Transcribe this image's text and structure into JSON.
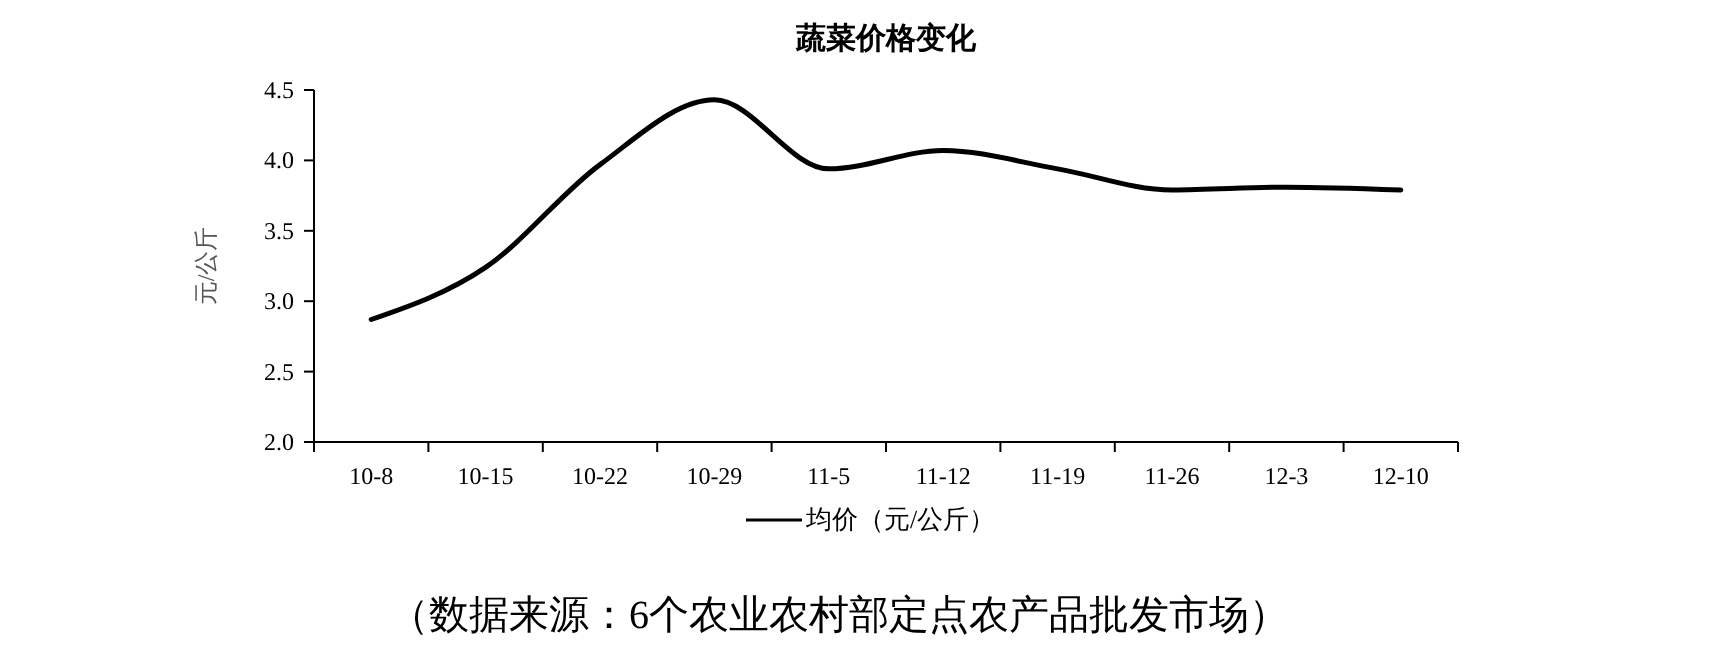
{
  "chart_data": {
    "type": "line",
    "title": "蔬菜价格变化",
    "ylabel": "元/公斤",
    "categories": [
      "10-8",
      "10-15",
      "10-22",
      "10-29",
      "11-5",
      "11-12",
      "11-19",
      "11-26",
      "12-3",
      "12-10"
    ],
    "series": [
      {
        "name": "均价（元/公斤）",
        "color": "#000000",
        "values": [
          2.87,
          3.24,
          3.97,
          4.43,
          3.94,
          4.07,
          3.94,
          3.79,
          3.81,
          3.79
        ]
      }
    ],
    "ylim": [
      2.0,
      4.5
    ],
    "yticks": [
      {
        "value": 2,
        "label": "2.0"
      },
      {
        "value": 2.5,
        "label": "2.5"
      },
      {
        "value": 3,
        "label": "3.0"
      },
      {
        "value": 3.5,
        "label": "3.5"
      },
      {
        "value": 4,
        "label": "4.0"
      },
      {
        "value": 4.5,
        "label": "4.5"
      }
    ],
    "grid": false,
    "legend": "bottom",
    "marker": "none",
    "line_style": "solid",
    "annotations": [
      "（数据来源：6个农业农村部定点农产品批发市场）"
    ]
  }
}
